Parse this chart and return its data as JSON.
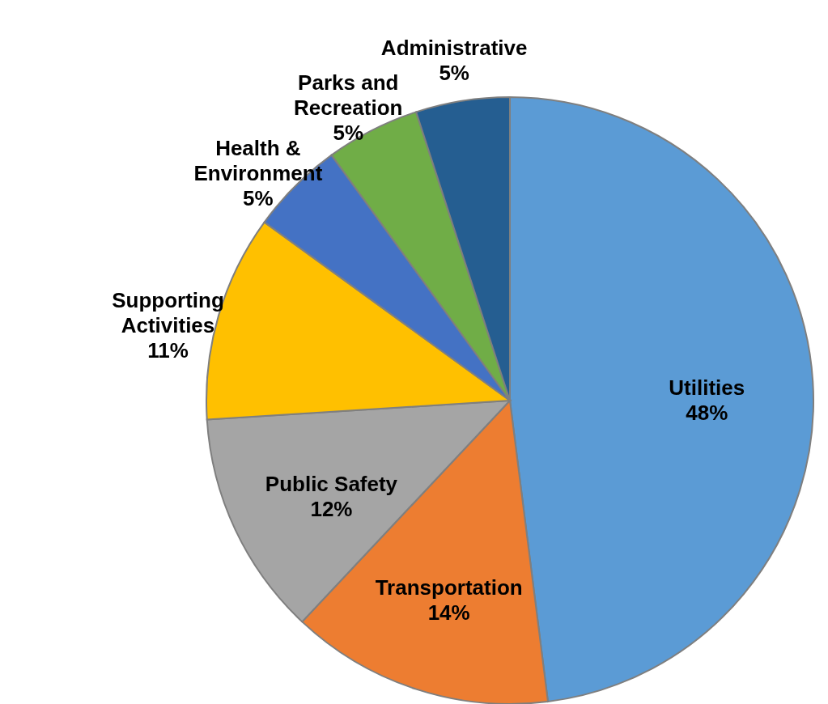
{
  "chart_data": {
    "type": "pie",
    "categories": [
      "Utilities",
      "Transportation",
      "Public Safety",
      "Supporting Activities",
      "Health & Environment",
      "Parks and Recreation",
      "Administrative"
    ],
    "values": [
      48,
      14,
      12,
      11,
      5,
      5,
      5
    ],
    "value_labels": [
      "48%",
      "14%",
      "12%",
      "11%",
      "5%",
      "5%",
      "5%"
    ],
    "colors": [
      "#5b9bd5",
      "#ed7d31",
      "#a5a5a5",
      "#ffc000",
      "#4472c4",
      "#70ad47",
      "#255e91"
    ],
    "legend": false
  }
}
